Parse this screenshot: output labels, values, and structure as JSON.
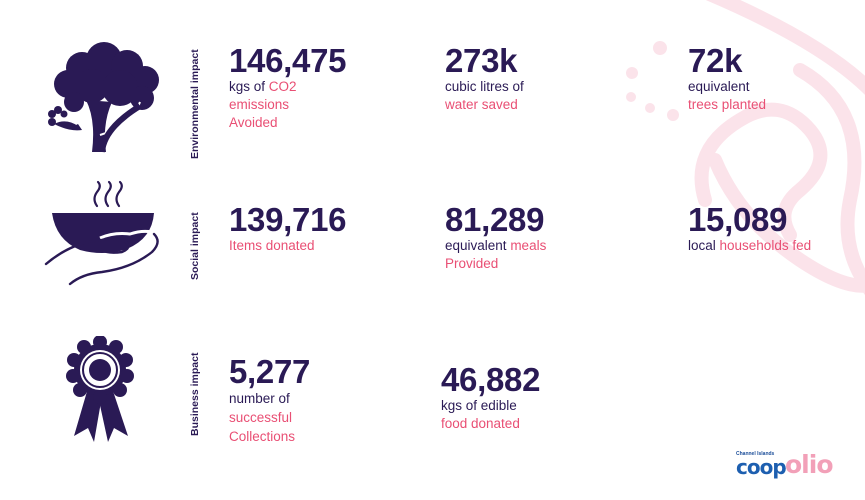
{
  "rows": [
    {
      "label": "Environmental impact",
      "icon": "tree-icon",
      "stats": [
        {
          "value": "146,475",
          "lines": [
            {
              "plain": "kgs of ",
              "pink": "CO2"
            },
            {
              "plain": "",
              "pink": "emissions"
            },
            {
              "plain": "",
              "pink": "Avoided"
            }
          ]
        },
        {
          "value": "273k",
          "lines": [
            {
              "plain": "cubic litres of",
              "pink": ""
            },
            {
              "plain": "",
              "pink": "water saved"
            }
          ]
        },
        {
          "value": "72k",
          "lines": [
            {
              "plain": "equivalent",
              "pink": ""
            },
            {
              "plain": "",
              "pink": "trees planted"
            }
          ]
        }
      ]
    },
    {
      "label": "Social impact",
      "icon": "food-bowl-hand-icon",
      "stats": [
        {
          "value": "139,716",
          "lines": [
            {
              "plain": "",
              "pink": "Items donated"
            }
          ]
        },
        {
          "value": "81,289",
          "lines": [
            {
              "plain": "equivalent ",
              "pink": "meals"
            },
            {
              "plain": "",
              "pink": "Provided"
            }
          ]
        },
        {
          "value": "15,089",
          "lines": [
            {
              "plain": "local ",
              "pink": "households fed"
            }
          ]
        }
      ]
    },
    {
      "label": "Business impact",
      "icon": "award-rosette-icon",
      "stats": [
        {
          "value": "5,277",
          "lines": [
            {
              "plain": "number of",
              "pink": ""
            },
            {
              "plain": "",
              "pink": "successful"
            },
            {
              "plain": "",
              "pink": "Collections"
            }
          ]
        },
        {
          "value": "46,882",
          "lines": [
            {
              "plain": "kgs of edible",
              "pink": ""
            },
            {
              "plain": "",
              "pink": "food donated"
            }
          ]
        }
      ]
    }
  ],
  "logos": {
    "coop_small": "Channel Islands",
    "coop_word": "coop",
    "olio_word": "olio"
  },
  "colors": {
    "navy": "#2a1a55",
    "pink": "#e94f74",
    "coop_blue": "#1d5fb0",
    "olio_pink": "#f2a0b8"
  }
}
